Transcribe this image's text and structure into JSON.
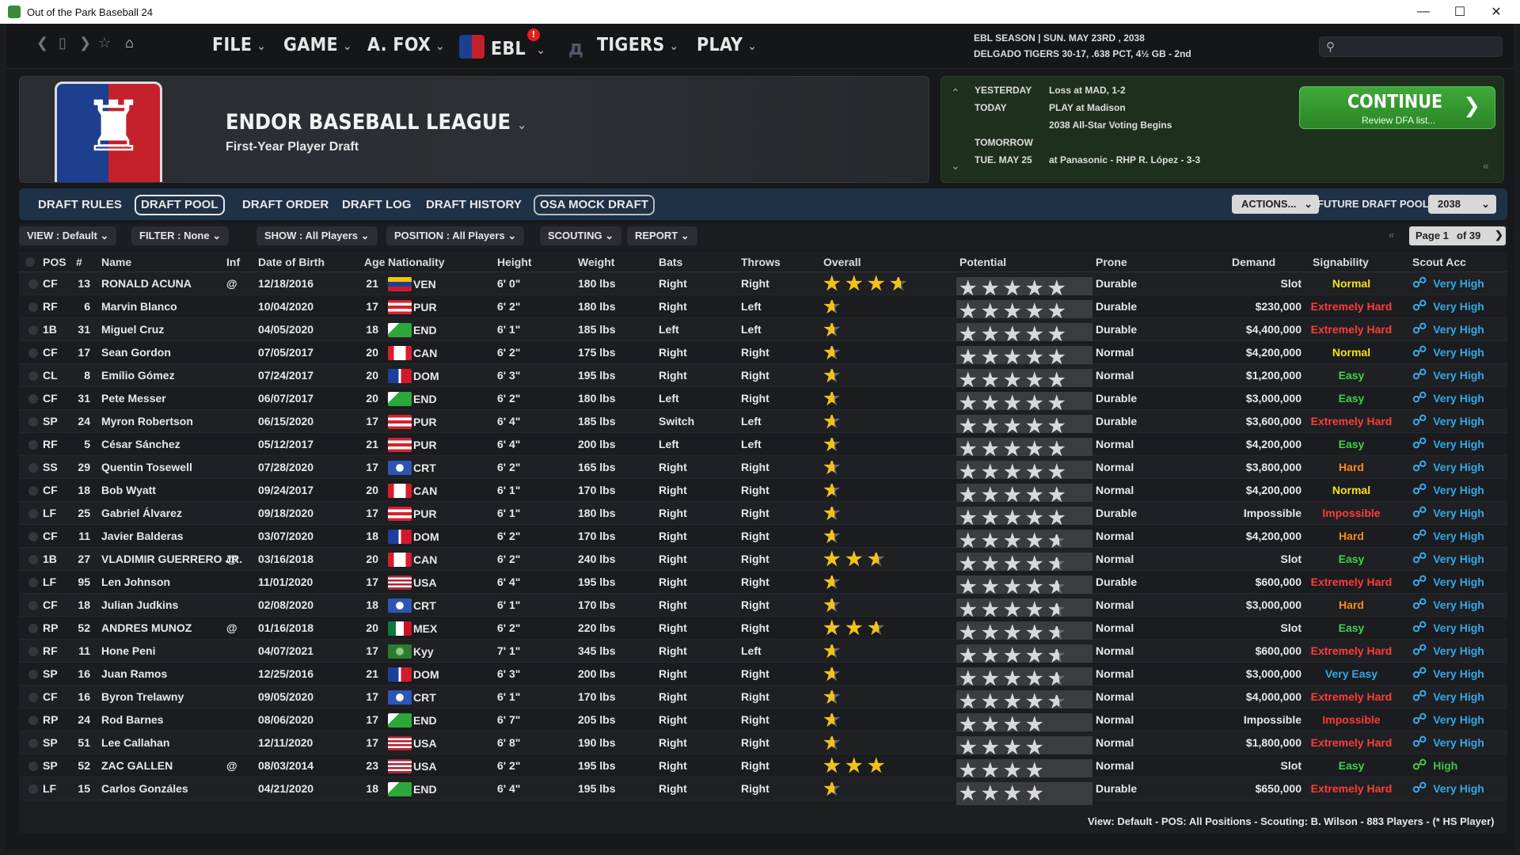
{
  "window": {
    "title": "Out of the Park Baseball 24"
  },
  "topnav": {
    "menus": [
      {
        "label": "FILE"
      },
      {
        "label": "GAME"
      },
      {
        "label": "A. FOX"
      },
      {
        "label": "EBL",
        "badge": "!"
      },
      {
        "label": "TIGERS"
      },
      {
        "label": "PLAY"
      }
    ],
    "season_line1": "EBL SEASON  |  SUN. MAY 23RD , 2038",
    "season_line2": "DELGADO TIGERS  30-17, .638 PCT, 4½ GB - 2nd"
  },
  "banner": {
    "title": "ENDOR BASEBALL LEAGUE",
    "subtitle": "First-Year Player Draft"
  },
  "schedule": {
    "yesterday_label": "YESTERDAY",
    "yesterday_value": "Loss at MAD, 1-2",
    "today_label": "TODAY",
    "today_value": "PLAY at Madison",
    "today_value2": "2038 All-Star Voting Begins",
    "tomorrow_label": "TOMORROW",
    "date_label": "TUE. MAY 25",
    "date_value": "at Panasonic - RHP R. López - 3-3",
    "continue_label": "CONTINUE",
    "continue_sub": "Review DFA list..."
  },
  "tabs": [
    {
      "label": "DRAFT RULES"
    },
    {
      "label": "DRAFT POOL",
      "selected": true
    },
    {
      "label": "DRAFT ORDER"
    },
    {
      "label": "DRAFT LOG"
    },
    {
      "label": "DRAFT HISTORY"
    },
    {
      "label": "OSA MOCK DRAFT",
      "outlined": true
    }
  ],
  "actions_label": "ACTIONS...",
  "future_pool_label": "FUTURE DRAFT POOL:",
  "future_pool_value": "2038",
  "filters": {
    "view": "VIEW : Default",
    "filter": "FILTER : None",
    "show": "SHOW : All Players",
    "position": "POSITION : All Players",
    "scouting": "SCOUTING",
    "report": "REPORT"
  },
  "pager": {
    "page": "Page 1",
    "of": "of 39"
  },
  "columns": [
    "POS",
    "#",
    "Name",
    "Inf",
    "Date of Birth",
    "Age",
    "Nationality",
    "Height",
    "Weight",
    "Bats",
    "Throws",
    "Overall",
    "Potential",
    "Prone",
    "Demand",
    "Signability",
    "Scout Acc"
  ],
  "colors": {
    "easy": "#3fd24a",
    "normal": "#f2e21a",
    "hard": "#ff8c1a",
    "extremely_hard": "#ff3b3b",
    "impossible": "#ff3b3b",
    "very_easy": "#35a8e6",
    "very_high": "#35a8e6",
    "high": "#3fc54a"
  },
  "rows": [
    {
      "pos": "CF",
      "num": "13",
      "name": "RONALD ACUNA",
      "inf": "@",
      "dob": "12/18/2016",
      "age": "21",
      "nat": "VEN",
      "height": "6' 0\"",
      "weight": "180 lbs",
      "bats": "Right",
      "throws": "Right",
      "overall": 3.5,
      "potential": 5,
      "prone": "Durable",
      "demand": "Slot",
      "sign": "Normal",
      "sign_color": "normal",
      "scout": "Very High"
    },
    {
      "pos": "RF",
      "num": "6",
      "name": "Marvin Blanco",
      "inf": "",
      "dob": "10/04/2020",
      "age": "17",
      "nat": "PUR",
      "height": "6' 2\"",
      "weight": "180 lbs",
      "bats": "Right",
      "throws": "Left",
      "overall": 0.5,
      "potential": 5,
      "prone": "Durable",
      "demand": "$230,000",
      "sign": "Extremely Hard",
      "sign_color": "extremely_hard",
      "scout": "Very High"
    },
    {
      "pos": "1B",
      "num": "31",
      "name": "Miguel Cruz",
      "inf": "",
      "dob": "04/05/2020",
      "age": "18",
      "nat": "END",
      "height": "6' 1\"",
      "weight": "185 lbs",
      "bats": "Left",
      "throws": "Left",
      "overall": 0.5,
      "potential": 5,
      "prone": "Durable",
      "demand": "$4,400,000",
      "sign": "Extremely Hard",
      "sign_color": "extremely_hard",
      "scout": "Very High"
    },
    {
      "pos": "CF",
      "num": "17",
      "name": "Sean Gordon",
      "inf": "",
      "dob": "07/05/2017",
      "age": "20",
      "nat": "CAN",
      "height": "6' 2\"",
      "weight": "175 lbs",
      "bats": "Right",
      "throws": "Right",
      "overall": 0.5,
      "potential": 5,
      "prone": "Normal",
      "demand": "$4,200,000",
      "sign": "Normal",
      "sign_color": "normal",
      "scout": "Very High"
    },
    {
      "pos": "CL",
      "num": "8",
      "name": "Emílio Gómez",
      "inf": "",
      "dob": "07/24/2017",
      "age": "20",
      "nat": "DOM",
      "height": "6' 3\"",
      "weight": "195 lbs",
      "bats": "Right",
      "throws": "Right",
      "overall": 0.5,
      "potential": 5,
      "prone": "Normal",
      "demand": "$1,200,000",
      "sign": "Easy",
      "sign_color": "easy",
      "scout": "Very High"
    },
    {
      "pos": "CF",
      "num": "31",
      "name": "Pete Messer",
      "inf": "",
      "dob": "06/07/2017",
      "age": "20",
      "nat": "END",
      "height": "6' 2\"",
      "weight": "180 lbs",
      "bats": "Left",
      "throws": "Right",
      "overall": 0.5,
      "potential": 5,
      "prone": "Durable",
      "demand": "$3,000,000",
      "sign": "Easy",
      "sign_color": "easy",
      "scout": "Very High"
    },
    {
      "pos": "SP",
      "num": "24",
      "name": "Myron Robertson",
      "inf": "",
      "dob": "06/15/2020",
      "age": "17",
      "nat": "PUR",
      "height": "6' 4\"",
      "weight": "185 lbs",
      "bats": "Switch",
      "throws": "Left",
      "overall": 0.5,
      "potential": 5,
      "prone": "Durable",
      "demand": "$3,600,000",
      "sign": "Extremely Hard",
      "sign_color": "extremely_hard",
      "scout": "Very High"
    },
    {
      "pos": "RF",
      "num": "5",
      "name": "César Sánchez",
      "inf": "",
      "dob": "05/12/2017",
      "age": "21",
      "nat": "PUR",
      "height": "6' 4\"",
      "weight": "200 lbs",
      "bats": "Left",
      "throws": "Left",
      "overall": 0.5,
      "potential": 5,
      "prone": "Normal",
      "demand": "$4,200,000",
      "sign": "Easy",
      "sign_color": "easy",
      "scout": "Very High"
    },
    {
      "pos": "SS",
      "num": "29",
      "name": "Quentin Tosewell",
      "inf": "",
      "dob": "07/28/2020",
      "age": "17",
      "nat": "CRT",
      "height": "6' 2\"",
      "weight": "165 lbs",
      "bats": "Right",
      "throws": "Right",
      "overall": 0.5,
      "potential": 5,
      "prone": "Normal",
      "demand": "$3,800,000",
      "sign": "Hard",
      "sign_color": "hard",
      "scout": "Very High"
    },
    {
      "pos": "CF",
      "num": "18",
      "name": "Bob Wyatt",
      "inf": "",
      "dob": "09/24/2017",
      "age": "20",
      "nat": "CAN",
      "height": "6' 1\"",
      "weight": "170 lbs",
      "bats": "Right",
      "throws": "Right",
      "overall": 0.5,
      "potential": 5,
      "prone": "Normal",
      "demand": "$4,200,000",
      "sign": "Normal",
      "sign_color": "normal",
      "scout": "Very High"
    },
    {
      "pos": "LF",
      "num": "25",
      "name": "Gabriel Álvarez",
      "inf": "",
      "dob": "09/18/2020",
      "age": "17",
      "nat": "PUR",
      "height": "6' 1\"",
      "weight": "180 lbs",
      "bats": "Right",
      "throws": "Right",
      "overall": 0.5,
      "potential": 5,
      "prone": "Durable",
      "demand": "Impossible",
      "sign": "Impossible",
      "sign_color": "impossible",
      "scout": "Very High"
    },
    {
      "pos": "CF",
      "num": "11",
      "name": "Javier Balderas",
      "inf": "",
      "dob": "03/07/2020",
      "age": "18",
      "nat": "DOM",
      "height": "6' 2\"",
      "weight": "170 lbs",
      "bats": "Right",
      "throws": "Right",
      "overall": 0.5,
      "potential": 4.5,
      "prone": "Normal",
      "demand": "$4,200,000",
      "sign": "Hard",
      "sign_color": "hard",
      "scout": "Very High"
    },
    {
      "pos": "1B",
      "num": "27",
      "name": "VLADIMIR GUERRERO JR.",
      "inf": "@",
      "dob": "03/16/2018",
      "age": "20",
      "nat": "CAN",
      "height": "6' 2\"",
      "weight": "240 lbs",
      "bats": "Right",
      "throws": "Right",
      "overall": 2.5,
      "potential": 4.5,
      "prone": "Normal",
      "demand": "Slot",
      "sign": "Easy",
      "sign_color": "easy",
      "scout": "Very High"
    },
    {
      "pos": "LF",
      "num": "95",
      "name": "Len Johnson",
      "inf": "",
      "dob": "11/01/2020",
      "age": "17",
      "nat": "USA",
      "height": "6' 4\"",
      "weight": "195 lbs",
      "bats": "Right",
      "throws": "Right",
      "overall": 0.5,
      "potential": 4.5,
      "prone": "Durable",
      "demand": "$600,000",
      "sign": "Extremely Hard",
      "sign_color": "extremely_hard",
      "scout": "Very High"
    },
    {
      "pos": "CF",
      "num": "18",
      "name": "Julian Judkins",
      "inf": "",
      "dob": "02/08/2020",
      "age": "18",
      "nat": "CRT",
      "height": "6' 1\"",
      "weight": "170 lbs",
      "bats": "Right",
      "throws": "Right",
      "overall": 0.5,
      "potential": 4.5,
      "prone": "Normal",
      "demand": "$3,000,000",
      "sign": "Hard",
      "sign_color": "hard",
      "scout": "Very High"
    },
    {
      "pos": "RP",
      "num": "52",
      "name": "ANDRES MUNOZ",
      "inf": "@",
      "dob": "01/16/2018",
      "age": "20",
      "nat": "MEX",
      "height": "6' 2\"",
      "weight": "220 lbs",
      "bats": "Right",
      "throws": "Right",
      "overall": 2.5,
      "potential": 4.5,
      "prone": "Normal",
      "demand": "Slot",
      "sign": "Easy",
      "sign_color": "easy",
      "scout": "Very High"
    },
    {
      "pos": "RF",
      "num": "11",
      "name": "Hone Peni",
      "inf": "",
      "dob": "04/07/2021",
      "age": "17",
      "nat": "Kyy",
      "height": "7' 1\"",
      "weight": "345 lbs",
      "bats": "Right",
      "throws": "Left",
      "overall": 0.5,
      "potential": 4.5,
      "prone": "Normal",
      "demand": "$600,000",
      "sign": "Extremely Hard",
      "sign_color": "extremely_hard",
      "scout": "Very High"
    },
    {
      "pos": "SP",
      "num": "16",
      "name": "Juan Ramos",
      "inf": "",
      "dob": "12/25/2016",
      "age": "21",
      "nat": "DOM",
      "height": "6' 3\"",
      "weight": "200 lbs",
      "bats": "Right",
      "throws": "Right",
      "overall": 0.5,
      "potential": 4.5,
      "prone": "Normal",
      "demand": "$3,000,000",
      "sign": "Very Easy",
      "sign_color": "very_easy",
      "scout": "Very High"
    },
    {
      "pos": "CF",
      "num": "16",
      "name": "Byron Trelawny",
      "inf": "",
      "dob": "09/05/2020",
      "age": "17",
      "nat": "CRT",
      "height": "6' 1\"",
      "weight": "170 lbs",
      "bats": "Right",
      "throws": "Right",
      "overall": 0.5,
      "potential": 4.5,
      "prone": "Normal",
      "demand": "$4,000,000",
      "sign": "Extremely Hard",
      "sign_color": "extremely_hard",
      "scout": "Very High"
    },
    {
      "pos": "RP",
      "num": "24",
      "name": "Rod Barnes",
      "inf": "",
      "dob": "08/06/2020",
      "age": "17",
      "nat": "END",
      "height": "6' 7\"",
      "weight": "205 lbs",
      "bats": "Right",
      "throws": "Right",
      "overall": 0.5,
      "potential": 4,
      "prone": "Normal",
      "demand": "Impossible",
      "sign": "Impossible",
      "sign_color": "impossible",
      "scout": "Very High"
    },
    {
      "pos": "SP",
      "num": "51",
      "name": "Lee Callahan",
      "inf": "",
      "dob": "12/11/2020",
      "age": "17",
      "nat": "USA",
      "height": "6' 8\"",
      "weight": "190 lbs",
      "bats": "Right",
      "throws": "Right",
      "overall": 0.5,
      "potential": 4,
      "prone": "Normal",
      "demand": "$1,800,000",
      "sign": "Extremely Hard",
      "sign_color": "extremely_hard",
      "scout": "Very High"
    },
    {
      "pos": "SP",
      "num": "52",
      "name": "ZAC GALLEN",
      "inf": "@",
      "dob": "08/03/2014",
      "age": "23",
      "nat": "USA",
      "height": "6' 2\"",
      "weight": "195 lbs",
      "bats": "Right",
      "throws": "Right",
      "overall": 3,
      "potential": 4,
      "prone": "Normal",
      "demand": "Slot",
      "sign": "Easy",
      "sign_color": "easy",
      "scout": "High",
      "scout_green": true
    },
    {
      "pos": "LF",
      "num": "15",
      "name": "Carlos Gonzáles",
      "inf": "",
      "dob": "04/21/2020",
      "age": "18",
      "nat": "END",
      "height": "6' 4\"",
      "weight": "195 lbs",
      "bats": "Right",
      "throws": "Right",
      "overall": 0.5,
      "potential": 4,
      "prone": "Durable",
      "demand": "$650,000",
      "sign": "Extremely Hard",
      "sign_color": "extremely_hard",
      "scout": "Very High"
    }
  ],
  "statusline": "View: Default - POS: All Positions - Scouting: B. Wilson - 883 Players - (* HS Player)"
}
